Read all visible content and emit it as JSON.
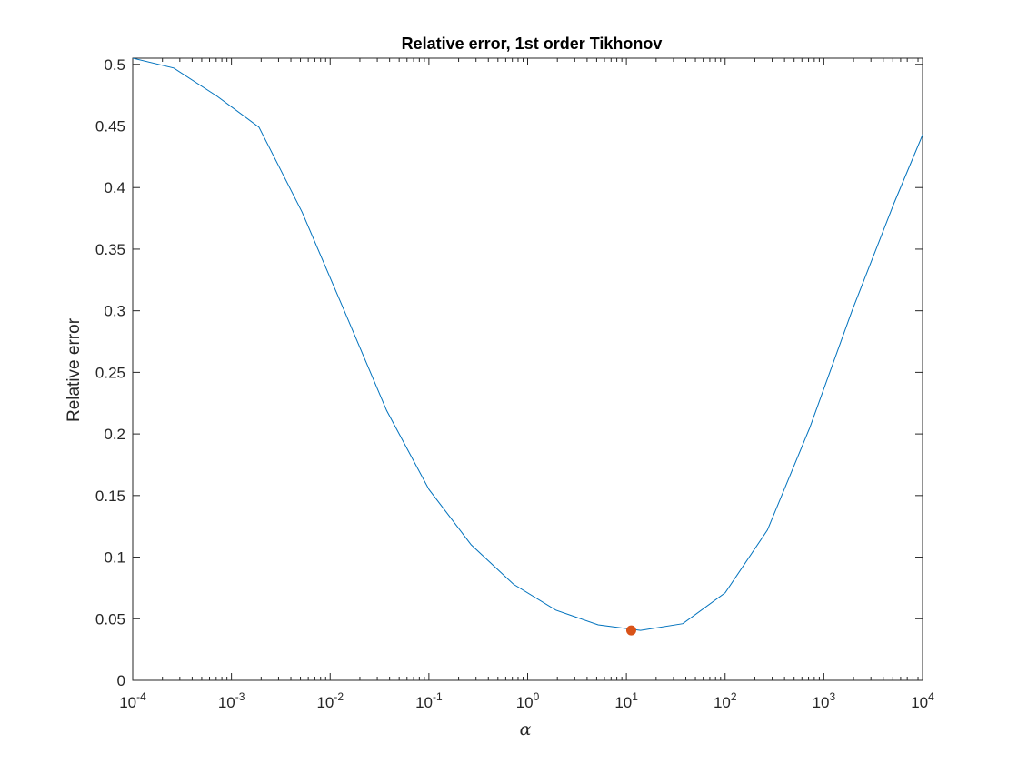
{
  "chart_data": {
    "type": "line",
    "title": "Relative error, 1st order Tikhonov",
    "xlabel": "α",
    "ylabel": "Relative error",
    "xscale": "log",
    "xlim": [
      0.0001,
      10000
    ],
    "ylim": [
      0,
      0.505
    ],
    "grid": false,
    "x_tick_labels": [
      {
        "base": "10",
        "exp": "-4"
      },
      {
        "base": "10",
        "exp": "-3"
      },
      {
        "base": "10",
        "exp": "-2"
      },
      {
        "base": "10",
        "exp": "-1"
      },
      {
        "base": "10",
        "exp": "0"
      },
      {
        "base": "10",
        "exp": "1"
      },
      {
        "base": "10",
        "exp": "2"
      },
      {
        "base": "10",
        "exp": "3"
      },
      {
        "base": "10",
        "exp": "4"
      }
    ],
    "y_ticks": [
      0,
      0.05,
      0.1,
      0.15,
      0.2,
      0.25,
      0.3,
      0.35,
      0.4,
      0.45,
      0.5
    ],
    "y_tick_labels": [
      "0",
      "0.05",
      "0.1",
      "0.15",
      "0.2",
      "0.25",
      "0.3",
      "0.35",
      "0.4",
      "0.45",
      "0.5"
    ],
    "series": [
      {
        "color": "#0072BD",
        "x": [
          0.0001,
          0.00026,
          0.00072,
          0.0019,
          0.0052,
          0.0139,
          0.0373,
          0.1,
          0.268,
          0.72,
          1.93,
          5.18,
          13.9,
          37.3,
          100,
          268,
          720,
          1930,
          5180,
          13900
        ],
        "y": [
          0.505,
          0.497,
          0.474,
          0.449,
          0.38,
          0.3,
          0.219,
          0.155,
          0.11,
          0.078,
          0.057,
          0.045,
          0.0405,
          0.046,
          0.071,
          0.122,
          0.205,
          0.3,
          0.388,
          0.47
        ]
      }
    ],
    "highlight_point": {
      "x": 11.2,
      "y": 0.0405,
      "color": "#D95319"
    }
  }
}
